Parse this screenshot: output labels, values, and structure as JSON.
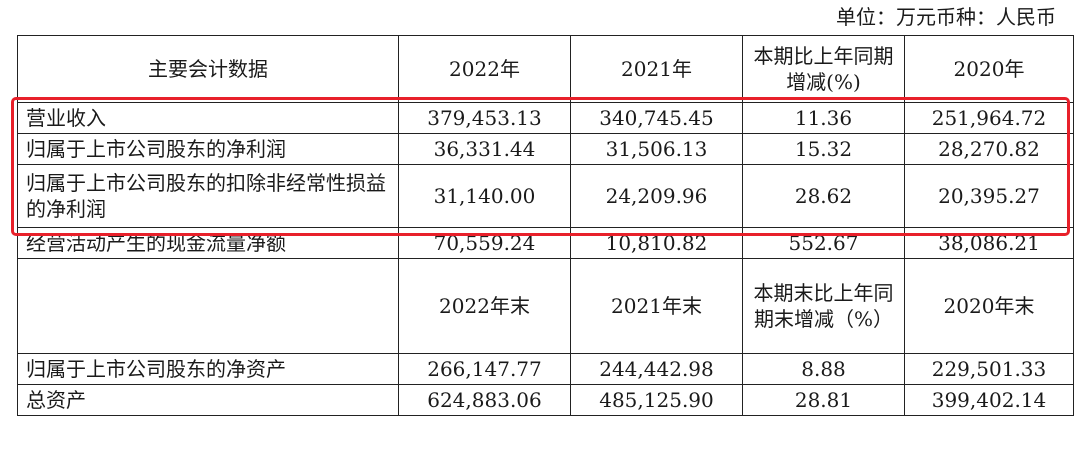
{
  "unit_label": "单位：万元币种：人民币",
  "header1": {
    "label": "主要会计数据",
    "cols": [
      "2022年",
      "2021年",
      "本期比上年同期增减(%)",
      "2020年"
    ]
  },
  "rows1": [
    {
      "label": "营业收入",
      "values": [
        "379,453.13",
        "340,745.45",
        "11.36",
        "251,964.72"
      ]
    },
    {
      "label": "归属于上市公司股东的净利润",
      "values": [
        "36,331.44",
        "31,506.13",
        "15.32",
        "28,270.82"
      ]
    },
    {
      "label": "归属于上市公司股东的扣除非经常性损益的净利润",
      "values": [
        "31,140.00",
        "24,209.96",
        "28.62",
        "20,395.27"
      ]
    },
    {
      "label": "经营活动产生的现金流量净额",
      "values": [
        "70,559.24",
        "10,810.82",
        "552.67",
        "38,086.21"
      ]
    }
  ],
  "header2": {
    "label": "",
    "cols": [
      "2022年末",
      "2021年末",
      "本期末比上年同期末增减（%）",
      "2020年末"
    ]
  },
  "rows2": [
    {
      "label": "归属于上市公司股东的净资产",
      "values": [
        "266,147.77",
        "244,442.98",
        "8.88",
        "229,501.33"
      ]
    },
    {
      "label": "总资产",
      "values": [
        "624,883.06",
        "485,125.90",
        "28.81",
        "399,402.14"
      ]
    }
  ],
  "colors": {
    "highlight_border": "#e8202a",
    "grid_line": "#222222"
  }
}
